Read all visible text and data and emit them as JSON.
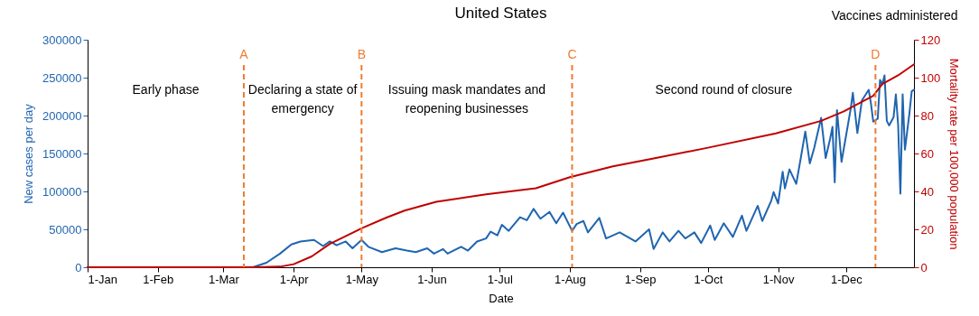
{
  "chart_data": {
    "type": "line",
    "title": "United States",
    "xlabel": "Date",
    "ylabel": "New cases per day",
    "y2label": "Mortality rate per 100,000 population",
    "xlim": [
      "--01-01",
      "--12-31"
    ],
    "xticks": [
      {
        "value": "--01-01",
        "label": "1-Jan"
      },
      {
        "value": "--02-01",
        "label": "1-Feb"
      },
      {
        "value": "--03-01",
        "label": "1-Mar"
      },
      {
        "value": "--04-01",
        "label": "1-Apr"
      },
      {
        "value": "--05-01",
        "label": "1-May"
      },
      {
        "value": "--06-01",
        "label": "1-Jun"
      },
      {
        "value": "--07-01",
        "label": "1-Jul"
      },
      {
        "value": "--08-01",
        "label": "1-Aug"
      },
      {
        "value": "--09-01",
        "label": "1-Sep"
      },
      {
        "value": "--10-01",
        "label": "1-Oct"
      },
      {
        "value": "--11-01",
        "label": "1-Nov"
      },
      {
        "value": "--12-01",
        "label": "1-Dec"
      }
    ],
    "ylim": [
      0,
      300000
    ],
    "yticks": [
      0,
      50000,
      100000,
      150000,
      200000,
      250000,
      300000
    ],
    "y2lim": [
      0,
      120
    ],
    "y2ticks": [
      0,
      20,
      40,
      60,
      80,
      100,
      120
    ],
    "series": [
      {
        "color": "#1f65b0",
        "x": [
          "--01-01",
          "--03-14",
          "--03-20",
          "--03-26",
          "--03-31",
          "--04-04",
          "--04-10",
          "--04-14",
          "--04-17",
          "--04-20",
          "--04-24",
          "--04-27",
          "--05-01",
          "--05-04",
          "--05-10",
          "--05-16",
          "--05-21",
          "--05-25",
          "--05-30",
          "--06-02",
          "--06-06",
          "--06-08",
          "--06-14",
          "--06-17",
          "--06-21",
          "--06-25",
          "--06-27",
          "--06-30",
          "--07-02",
          "--07-05",
          "--07-10",
          "--07-13",
          "--07-16",
          "--07-19",
          "--07-23",
          "--07-26",
          "--07-29",
          "--08-02",
          "--08-04",
          "--08-07",
          "--08-09",
          "--08-14",
          "--08-17",
          "--08-23",
          "--08-30",
          "--09-05",
          "--09-07",
          "--09-11",
          "--09-14",
          "--09-18",
          "--09-21",
          "--09-25",
          "--09-28",
          "--10-02",
          "--10-04",
          "--10-08",
          "--10-12",
          "--10-16",
          "--10-18",
          "--10-23",
          "--10-25",
          "--10-29",
          "--10-30",
          "--11-01",
          "--11-03",
          "--11-04",
          "--11-06",
          "--11-09",
          "--11-11",
          "--11-13",
          "--11-15",
          "--11-17",
          "--11-20",
          "--11-22",
          "--11-24",
          "--11-25",
          "--11-26",
          "--11-27",
          "--11-29",
          "--12-03",
          "--12-04",
          "--12-06",
          "--12-08",
          "--12-11",
          "--12-12",
          "--12-13",
          "--12-15",
          "--12-16",
          "--12-17",
          "--12-18",
          "--12-19",
          "--12-20",
          "--12-22",
          "--12-23",
          "--12-24",
          "--12-25",
          "--12-26",
          "--12-27",
          "--12-29",
          "--12-30",
          "--12-31"
        ],
        "values": [
          0,
          0,
          6000,
          18000,
          30000,
          34000,
          36000,
          28000,
          34000,
          29000,
          34000,
          25000,
          36000,
          27000,
          20000,
          25000,
          22000,
          20000,
          25000,
          18000,
          24000,
          18000,
          27000,
          22000,
          34000,
          38000,
          47000,
          42000,
          56000,
          48000,
          66000,
          62000,
          77000,
          64000,
          73000,
          58000,
          72000,
          48000,
          57000,
          61000,
          46000,
          65000,
          38000,
          46000,
          34000,
          50000,
          24000,
          46000,
          34000,
          48000,
          38000,
          46000,
          32000,
          55000,
          36000,
          58000,
          40000,
          68000,
          48000,
          81000,
          61000,
          88000,
          99000,
          84000,
          126000,
          104000,
          129000,
          110000,
          144000,
          179000,
          137000,
          158000,
          197000,
          144000,
          170000,
          185000,
          112000,
          207000,
          139000,
          208000,
          230000,
          177000,
          220000,
          234000,
          216000,
          192000,
          196000,
          247000,
          241000,
          253000,
          193000,
          187000,
          198000,
          228000,
          188000,
          97000,
          228000,
          155000,
          203000,
          232000,
          234000
        ]
      },
      {
        "color": "#c00000",
        "axis": "y2",
        "x": [
          "--01-01",
          "--03-15",
          "--03-26",
          "--04-01",
          "--04-09",
          "--04-17",
          "--05-01",
          "--05-12",
          "--05-20",
          "--06-03",
          "--06-25",
          "--07-17",
          "--08-01",
          "--08-20",
          "--09-07",
          "--09-30",
          "--10-31",
          "--11-20",
          "--11-30",
          "--12-13",
          "--12-17",
          "--12-24",
          "--12-31"
        ],
        "values": [
          0,
          0,
          0.3,
          1.6,
          5.7,
          12.3,
          20.5,
          26.2,
          29.9,
          34.5,
          38.4,
          41.7,
          47.5,
          53.2,
          57.4,
          62.8,
          70.6,
          77.2,
          82.2,
          90.4,
          96.6,
          101.2,
          107
        ]
      }
    ],
    "ref_lines": [
      {
        "axis": "x",
        "value": "--03-10",
        "label": "A",
        "color": "#ed7d31",
        "line_style": "dashed"
      },
      {
        "axis": "x",
        "value": "--05-01",
        "label": "B",
        "color": "#ed7d31",
        "line_style": "dashed"
      },
      {
        "axis": "x",
        "value": "--08-02",
        "label": "C",
        "color": "#ed7d31",
        "line_style": "dashed"
      },
      {
        "axis": "x",
        "value": "--12-14",
        "label": "D",
        "color": "#ed7d31",
        "line_style": "dashed"
      }
    ],
    "annotations": [
      "Early phase",
      "Declaring a state of emergency",
      "Issuing mask mandates and reopening businesses",
      "Second round of closure",
      "Vaccines administered"
    ]
  }
}
